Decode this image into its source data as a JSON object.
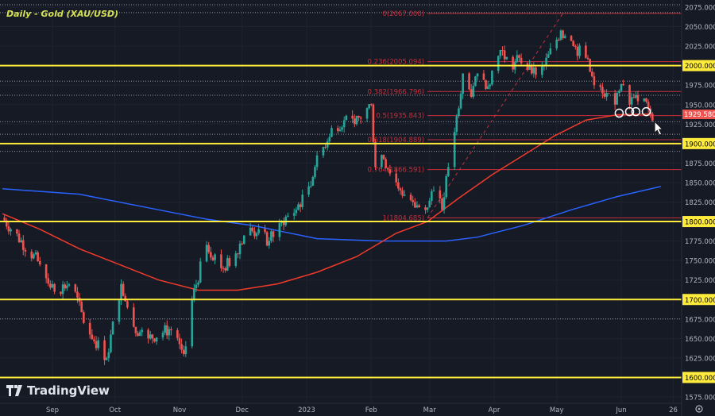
{
  "chart_data": {
    "type": "candlestick",
    "title": "Daily - Gold (XAU/USD)",
    "ylim": [
      1565,
      2085
    ],
    "y_ticks": [
      2075,
      2050,
      2025,
      2000,
      1975,
      1950,
      1925,
      1900,
      1875,
      1850,
      1825,
      1800,
      1775,
      1750,
      1725,
      1700,
      1675,
      1650,
      1625,
      1600,
      1575
    ],
    "highlighted_levels": [
      2000,
      1900,
      1800,
      1700,
      1600
    ],
    "last_price": "1929.580",
    "x_labels": [
      {
        "label": "Sep",
        "date": "2022-09-01"
      },
      {
        "label": "Oct",
        "date": "2022-10-01"
      },
      {
        "label": "Nov",
        "date": "2022-11-01"
      },
      {
        "label": "Dec",
        "date": "2022-12-01"
      },
      {
        "label": "2023",
        "date": "2023-01-01"
      },
      {
        "label": "Feb",
        "date": "2023-02-01"
      },
      {
        "label": "Mar",
        "date": "2023-03-01"
      },
      {
        "label": "Apr",
        "date": "2023-04-01"
      },
      {
        "label": "May",
        "date": "2023-05-01"
      },
      {
        "label": "Jun",
        "date": "2023-06-01"
      },
      {
        "label": "26",
        "date": "2023-06-26"
      }
    ],
    "price_path": [
      [
        "2022-08-08",
        1805
      ],
      [
        "2022-08-26",
        1745
      ],
      [
        "2022-09-02",
        1710
      ],
      [
        "2022-09-10",
        1722
      ],
      [
        "2022-09-17",
        1665
      ],
      [
        "2022-09-27",
        1625
      ],
      [
        "2022-10-04",
        1720
      ],
      [
        "2022-10-10",
        1665
      ],
      [
        "2022-10-17",
        1650
      ],
      [
        "2022-10-27",
        1662
      ],
      [
        "2022-11-03",
        1630
      ],
      [
        "2022-11-07",
        1700
      ],
      [
        "2022-11-14",
        1770
      ],
      [
        "2022-11-22",
        1740
      ],
      [
        "2022-11-27",
        1755
      ],
      [
        "2022-12-03",
        1790
      ],
      [
        "2022-12-08",
        1785
      ],
      [
        "2022-12-14",
        1775
      ],
      [
        "2022-12-20",
        1800
      ],
      [
        "2022-12-27",
        1815
      ],
      [
        "2023-01-02",
        1845
      ],
      [
        "2023-01-05",
        1870
      ],
      [
        "2023-01-13",
        1920
      ],
      [
        "2023-01-19",
        1930
      ],
      [
        "2023-01-24",
        1925
      ],
      [
        "2023-02-01",
        1950
      ],
      [
        "2023-02-03",
        1870
      ],
      [
        "2023-02-07",
        1880
      ],
      [
        "2023-02-15",
        1840
      ],
      [
        "2023-02-21",
        1825
      ],
      [
        "2023-02-27",
        1815
      ],
      [
        "2023-03-03",
        1840
      ],
      [
        "2023-03-07",
        1815
      ],
      [
        "2023-03-10",
        1870
      ],
      [
        "2023-03-13",
        1915
      ],
      [
        "2023-03-17",
        1990
      ],
      [
        "2023-03-21",
        1960
      ],
      [
        "2023-03-24",
        1990
      ],
      [
        "2023-03-28",
        1970
      ],
      [
        "2023-04-04",
        2020
      ],
      [
        "2023-04-10",
        1995
      ],
      [
        "2023-04-13",
        2010
      ],
      [
        "2023-04-19",
        1990
      ],
      [
        "2023-04-25",
        2000
      ],
      [
        "2023-05-03",
        2045
      ],
      [
        "2023-05-09",
        2025
      ],
      [
        "2023-05-15",
        2010
      ],
      [
        "2023-05-19",
        1975
      ],
      [
        "2023-05-24",
        1960
      ],
      [
        "2023-05-29",
        1950
      ],
      [
        "2023-06-02",
        1975
      ],
      [
        "2023-06-05",
        1950
      ],
      [
        "2023-06-08",
        1962
      ],
      [
        "2023-06-12",
        1958
      ],
      [
        "2023-06-14",
        1945
      ],
      [
        "2023-06-16",
        1929.58
      ]
    ],
    "ma_red": [
      [
        "2022-08-08",
        1810
      ],
      [
        "2022-08-26",
        1790
      ],
      [
        "2022-09-14",
        1765
      ],
      [
        "2022-10-03",
        1745
      ],
      [
        "2022-10-22",
        1725
      ],
      [
        "2022-11-10",
        1712
      ],
      [
        "2022-11-29",
        1712
      ],
      [
        "2022-12-18",
        1720
      ],
      [
        "2023-01-06",
        1735
      ],
      [
        "2023-01-25",
        1755
      ],
      [
        "2023-02-13",
        1785
      ],
      [
        "2023-02-28",
        1800
      ],
      [
        "2023-03-15",
        1830
      ],
      [
        "2023-03-31",
        1860
      ],
      [
        "2023-04-15",
        1885
      ],
      [
        "2023-04-30",
        1910
      ],
      [
        "2023-05-15",
        1930
      ],
      [
        "2023-05-30",
        1937
      ],
      [
        "2023-06-16",
        1938
      ]
    ],
    "ma_blue": [
      [
        "2022-08-08",
        1842
      ],
      [
        "2022-09-14",
        1835
      ],
      [
        "2022-10-22",
        1815
      ],
      [
        "2022-11-14",
        1803
      ],
      [
        "2022-12-06",
        1795
      ],
      [
        "2023-01-06",
        1778
      ],
      [
        "2023-02-06",
        1775
      ],
      [
        "2023-03-09",
        1775
      ],
      [
        "2023-03-24",
        1780
      ],
      [
        "2023-04-15",
        1795
      ],
      [
        "2023-05-08",
        1815
      ],
      [
        "2023-05-30",
        1832
      ],
      [
        "2023-06-20",
        1845
      ]
    ],
    "fibonacci": {
      "start": [
        "2023-02-28",
        1804.685
      ],
      "end": [
        "2023-05-04",
        2067.0
      ],
      "levels": [
        {
          "label": "0(2067.000)",
          "price": 2067.0
        },
        {
          "label": "0.236(2005.094)",
          "price": 2005.094
        },
        {
          "label": "0.382(1966.796)",
          "price": 1966.796
        },
        {
          "label": "0.5(1935.843)",
          "price": 1935.843
        },
        {
          "label": "0.618(1904.889)",
          "price": 1904.889
        },
        {
          "label": "0.764(1866.591)",
          "price": 1866.591
        },
        {
          "label": "1(1804.685)",
          "price": 1804.685
        }
      ]
    },
    "dotted_levels": [
      2078,
      2068,
      1980,
      1962,
      1928,
      1912,
      1890,
      1675
    ],
    "circles": [
      [
        "2023-05-31",
        1939
      ],
      [
        "2023-06-05",
        1941
      ],
      [
        "2023-06-08",
        1941
      ],
      [
        "2023-06-13",
        1941
      ]
    ],
    "colors": {
      "bg": "#161a25",
      "up": "#26a69a",
      "down": "#ef5350",
      "ma_red": "#f23a2a",
      "ma_blue": "#2962ff",
      "level": "#ffeb3b",
      "fib": "#c2303c",
      "text": "#b2b5be"
    }
  },
  "branding": {
    "logo_text": "TradingView"
  }
}
